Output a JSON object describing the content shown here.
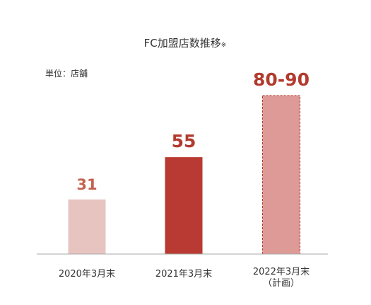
{
  "chart_data": {
    "type": "bar",
    "title": "FC加盟店数推移",
    "title_note": "※",
    "unit_label": "単位：店舗",
    "categories": [
      [
        "2020年3月末"
      ],
      [
        "2021年3月末"
      ],
      [
        "2022年3月末",
        "（計画）"
      ]
    ],
    "values": [
      31,
      55,
      85
    ],
    "range": [
      null,
      null,
      [
        80,
        90
      ]
    ],
    "value_labels": [
      "31",
      "55",
      "80-90"
    ],
    "bar_colors": [
      "#e8c4c1",
      "#b93a32",
      "#de9a96"
    ],
    "label_colors": [
      "#c4614f",
      "#b23a2e",
      "#b23a2e"
    ],
    "planned": [
      false,
      false,
      true
    ],
    "planned_border_color": "#b23a2e",
    "axis_color": "#aaaaaa",
    "ylim": [
      0,
      90
    ],
    "grid": false,
    "legend": "none"
  }
}
